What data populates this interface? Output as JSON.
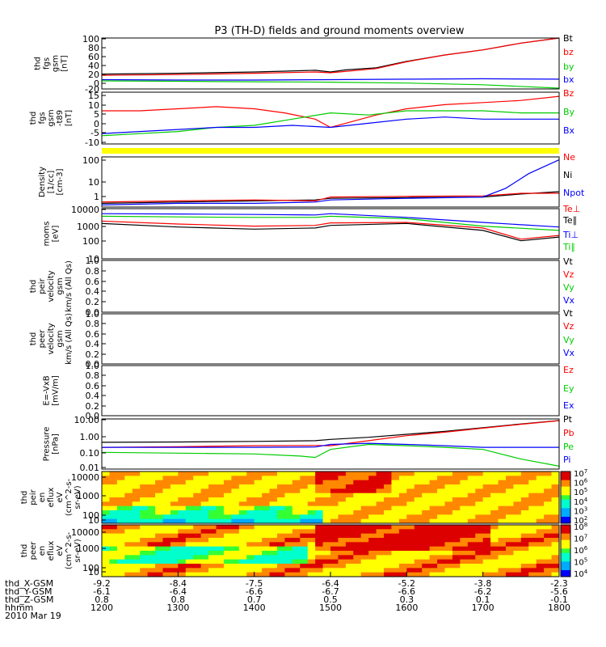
{
  "title": "P3 (TH-D) fields and ground moments overview",
  "colors": {
    "black": "#000000",
    "red": "#ff0000",
    "green": "#00cc00",
    "blue": "#0000ff",
    "yellow": "#ffff00"
  },
  "chart_data": [
    {
      "type": "line",
      "ylabel": [
        "thd",
        "fgs",
        "gsm",
        "[nT]"
      ],
      "yticks": [
        "100",
        "80",
        "60",
        "40",
        "20",
        "0",
        "-20"
      ],
      "ylim": [
        -20,
        100
      ],
      "legend": [
        {
          "text": "Bt",
          "color": "#000000"
        },
        {
          "text": "bz",
          "color": "#ff0000"
        },
        {
          "text": "by",
          "color": "#00cc00"
        },
        {
          "text": "bx",
          "color": "#0000ff"
        }
      ],
      "series": [
        {
          "color": "#000000",
          "x": [
            1200,
            1300,
            1400,
            1440,
            1480,
            1500,
            1520,
            1560,
            1600,
            1650,
            1700,
            1750,
            1800
          ],
          "y": [
            15,
            17,
            20,
            22,
            24,
            20,
            25,
            30,
            45,
            60,
            72,
            88,
            100
          ]
        },
        {
          "color": "#ff0000",
          "x": [
            1200,
            1300,
            1400,
            1480,
            1500,
            1560,
            1600,
            1650,
            1700,
            1750,
            1800
          ],
          "y": [
            12,
            14,
            17,
            20,
            18,
            28,
            44,
            60,
            72,
            88,
            100
          ]
        },
        {
          "color": "#0000ff",
          "x": [
            1200,
            1300,
            1400,
            1500,
            1600,
            1700,
            1800
          ],
          "y": [
            2,
            1,
            1,
            2,
            3,
            4,
            3
          ]
        },
        {
          "color": "#00cc00",
          "x": [
            1200,
            1300,
            1400,
            1500,
            1600,
            1700,
            1800
          ],
          "y": [
            -1,
            -2,
            -3,
            -4,
            -6,
            -10,
            -18
          ]
        }
      ]
    },
    {
      "type": "line",
      "ylabel": [
        "thd",
        "fgs",
        "gsm",
        "-t89",
        "[nT]"
      ],
      "yticks": [
        "15",
        "10",
        "5",
        "0",
        "-5",
        "-10"
      ],
      "ylim": [
        -10,
        15
      ],
      "legend": [
        {
          "text": "Bz",
          "color": "#ff0000"
        },
        {
          "text": "By",
          "color": "#00cc00"
        },
        {
          "text": "Bx",
          "color": "#0000ff"
        }
      ],
      "series": [
        {
          "color": "#ff0000",
          "x": [
            1200,
            1250,
            1300,
            1350,
            1400,
            1440,
            1480,
            1500,
            1520,
            1560,
            1600,
            1650,
            1700,
            1750,
            1800
          ],
          "y": [
            6,
            6,
            7,
            8,
            7,
            5,
            2,
            -2,
            0,
            4,
            7,
            9,
            10,
            11,
            13
          ]
        },
        {
          "color": "#00cc00",
          "x": [
            1200,
            1250,
            1300,
            1350,
            1400,
            1450,
            1500,
            1550,
            1600,
            1650,
            1700,
            1750,
            1800
          ],
          "y": [
            -6,
            -5,
            -4,
            -2,
            -1,
            2,
            5,
            4,
            6,
            6,
            6,
            5,
            5
          ]
        },
        {
          "color": "#0000ff",
          "x": [
            1200,
            1250,
            1300,
            1350,
            1400,
            1450,
            1500,
            1550,
            1600,
            1650,
            1700,
            1750,
            1800
          ],
          "y": [
            -5,
            -4,
            -3,
            -2,
            -2,
            -1,
            -2,
            0,
            2,
            3,
            2,
            2,
            2
          ]
        }
      ]
    },
    {
      "type": "heatmap",
      "ylabel": [
        "Density",
        "[1/cc]",
        "[cm-3]"
      ],
      "yticks": [
        "100",
        "10",
        "1"
      ],
      "ylim": [
        0.3,
        300
      ],
      "scale": "log",
      "legend": [
        {
          "text": "Ne",
          "color": "#ff0000"
        },
        {
          "text": "Ni",
          "color": "#000000"
        },
        {
          "text": "Npot",
          "color": "#0000ff"
        }
      ],
      "series": [
        {
          "color": "#000000",
          "x": [
            1200,
            1300,
            1400,
            1480,
            1500,
            1600,
            1700,
            1750,
            1800
          ],
          "y": [
            0.5,
            0.6,
            0.7,
            0.8,
            1.0,
            1.1,
            1.2,
            1.8,
            2.5
          ]
        },
        {
          "color": "#ff0000",
          "x": [
            1200,
            1300,
            1400,
            1480,
            1500,
            1600,
            1700,
            1750,
            1800
          ],
          "y": [
            0.6,
            0.7,
            0.8,
            0.7,
            1.2,
            1.3,
            1.4,
            2.0,
            2.0
          ]
        },
        {
          "color": "#0000ff",
          "x": [
            1200,
            1300,
            1400,
            1480,
            1500,
            1600,
            1700,
            1730,
            1760,
            1800
          ],
          "y": [
            0.4,
            0.5,
            0.5,
            0.6,
            0.8,
            1.0,
            1.2,
            4,
            30,
            200
          ]
        }
      ]
    },
    {
      "type": "line",
      "ylabel": [
        "moms",
        "[eV]"
      ],
      "yticks": [
        "10000",
        "1000",
        "100",
        "10"
      ],
      "ylim": [
        10,
        10000
      ],
      "scale": "log",
      "legend": [
        {
          "text": "Te⊥",
          "color": "#ff0000"
        },
        {
          "text": "Te∥",
          "color": "#000000"
        },
        {
          "text": "Ti⊥",
          "color": "#0000ff"
        },
        {
          "text": "Ti∥",
          "color": "#00cc00"
        }
      ],
      "series": [
        {
          "color": "#0000ff",
          "x": [
            1200,
            1300,
            1400,
            1480,
            1500,
            1600,
            1700,
            1800
          ],
          "y": [
            5000,
            4800,
            4500,
            4200,
            5000,
            3000,
            1500,
            800
          ]
        },
        {
          "color": "#00cc00",
          "x": [
            1200,
            1300,
            1400,
            1480,
            1500,
            1600,
            1700,
            1800
          ],
          "y": [
            3500,
            3200,
            3000,
            3000,
            3500,
            2500,
            900,
            500
          ]
        },
        {
          "color": "#ff0000",
          "x": [
            1200,
            1300,
            1400,
            1480,
            1500,
            1600,
            1700,
            1750,
            1800
          ],
          "y": [
            1800,
            1200,
            900,
            1000,
            1400,
            1500,
            700,
            150,
            250
          ]
        },
        {
          "color": "#000000",
          "x": [
            1200,
            1300,
            1400,
            1480,
            1500,
            1600,
            1700,
            1750,
            1800
          ],
          "y": [
            1300,
            800,
            600,
            700,
            1000,
            1300,
            500,
            120,
            200
          ]
        }
      ]
    },
    {
      "type": "line",
      "ylabel": [
        "thd",
        "peir",
        "velocity",
        "gsm",
        "km/s (All Qs)"
      ],
      "yticks": [
        "1.0",
        "0.8",
        "0.6",
        "0.4",
        "0.2",
        "0.0"
      ],
      "ylim": [
        0,
        1
      ],
      "legend": [
        {
          "text": "Vt",
          "color": "#000000"
        },
        {
          "text": "Vz",
          "color": "#ff0000"
        },
        {
          "text": "Vy",
          "color": "#00cc00"
        },
        {
          "text": "Vx",
          "color": "#0000ff"
        }
      ],
      "series": []
    },
    {
      "type": "line",
      "ylabel": [
        "thd",
        "peer",
        "velocity",
        "gsm",
        "km/s (All Qs)"
      ],
      "yticks": [
        "1.0",
        "0.8",
        "0.6",
        "0.4",
        "0.2",
        "0.0"
      ],
      "ylim": [
        0,
        1
      ],
      "legend": [
        {
          "text": "Vt",
          "color": "#000000"
        },
        {
          "text": "Vz",
          "color": "#ff0000"
        },
        {
          "text": "Vy",
          "color": "#00cc00"
        },
        {
          "text": "Vx",
          "color": "#0000ff"
        }
      ],
      "series": []
    },
    {
      "type": "line",
      "ylabel": [
        "E=-VxB",
        "[mV/m]"
      ],
      "yticks": [
        "1.0",
        "0.8",
        "0.6",
        "0.4",
        "0.2",
        "0.0"
      ],
      "ylim": [
        0,
        1
      ],
      "legend": [
        {
          "text": "Ez",
          "color": "#ff0000"
        },
        {
          "text": "Ey",
          "color": "#00cc00"
        },
        {
          "text": "Ex",
          "color": "#0000ff"
        }
      ],
      "series": []
    },
    {
      "type": "line",
      "ylabel": [
        "Pressure",
        "[nPa]"
      ],
      "yticks": [
        "10.00",
        "1.00",
        "0.10",
        "0.01"
      ],
      "ylim": [
        0.01,
        10
      ],
      "scale": "log",
      "legend": [
        {
          "text": "Pt",
          "color": "#000000"
        },
        {
          "text": "Pb",
          "color": "#ff0000"
        },
        {
          "text": "Pe",
          "color": "#00cc00"
        },
        {
          "text": "Pi",
          "color": "#0000ff"
        }
      ],
      "series": [
        {
          "color": "#000000",
          "x": [
            1200,
            1300,
            1400,
            1480,
            1500,
            1550,
            1600,
            1650,
            1700,
            1750,
            1800
          ],
          "y": [
            0.4,
            0.42,
            0.45,
            0.5,
            0.6,
            0.8,
            1.2,
            1.8,
            3.0,
            5.0,
            8.0
          ]
        },
        {
          "color": "#ff0000",
          "x": [
            1200,
            1300,
            1400,
            1480,
            1500,
            1550,
            1600,
            1650,
            1700,
            1750,
            1800
          ],
          "y": [
            0.2,
            0.22,
            0.25,
            0.26,
            0.25,
            0.5,
            1.0,
            1.6,
            2.8,
            4.8,
            7.8
          ]
        },
        {
          "color": "#0000ff",
          "x": [
            1200,
            1300,
            1400,
            1480,
            1500,
            1550,
            1600,
            1650,
            1700,
            1800
          ],
          "y": [
            0.2,
            0.2,
            0.2,
            0.21,
            0.3,
            0.35,
            0.3,
            0.25,
            0.2,
            0.2
          ]
        },
        {
          "color": "#00cc00",
          "x": [
            1200,
            1300,
            1400,
            1460,
            1480,
            1500,
            1550,
            1600,
            1650,
            1700,
            1750,
            1800
          ],
          "y": [
            0.1,
            0.09,
            0.08,
            0.06,
            0.05,
            0.15,
            0.3,
            0.25,
            0.2,
            0.15,
            0.04,
            0.015
          ]
        }
      ]
    },
    {
      "type": "heatmap",
      "ylabel": [
        "thd",
        "peir",
        "en",
        "eflux",
        "eV",
        "(cm^2-s-",
        "sr-eV)"
      ],
      "yticks": [
        "10000",
        "1000",
        "100",
        "10"
      ],
      "ylim": [
        6,
        20000
      ],
      "scale": "log",
      "colorbar": {
        "labels": [
          "10^7",
          "10^6",
          "10^5",
          "10^4",
          "10^3",
          "10^2"
        ]
      }
    },
    {
      "type": "heatmap",
      "ylabel": [
        "thd",
        "peer",
        "en",
        "eflux",
        "eV",
        "(cm^2-s-",
        "sr-eV)"
      ],
      "yticks": [
        "10000",
        "1000",
        "100",
        "10"
      ],
      "ylim": [
        6,
        20000
      ],
      "scale": "log",
      "colorbar": {
        "labels": [
          "10^8",
          "10^7",
          "10^6",
          "10^5",
          "10^4"
        ]
      }
    }
  ],
  "x_axis": {
    "ticks": [
      {
        "x": 1200,
        "X": "-9.2",
        "Y": "-6.1",
        "Z": "0.8",
        "hhmm": "1200"
      },
      {
        "x": 1300,
        "X": "-8.4",
        "Y": "-6.4",
        "Z": "0.8",
        "hhmm": "1300"
      },
      {
        "x": 1400,
        "X": "-7.5",
        "Y": "-6.6",
        "Z": "0.7",
        "hhmm": "1400"
      },
      {
        "x": 1500,
        "X": "-6.4",
        "Y": "-6.7",
        "Z": "0.5",
        "hhmm": "1500"
      },
      {
        "x": 1600,
        "X": "-5.2",
        "Y": "-6.6",
        "Z": "0.3",
        "hhmm": "1600"
      },
      {
        "x": 1700,
        "X": "-3.8",
        "Y": "-6.2",
        "Z": "0.1",
        "hhmm": "1700"
      },
      {
        "x": 1800,
        "X": "-2.3",
        "Y": "-5.6",
        "Z": "-0.1",
        "hhmm": "1800"
      }
    ],
    "row_labels": [
      "thd_X-GSM",
      "thd_Y-GSM",
      "thd_Z-GSM",
      "hhmm",
      "2010 Mar 19"
    ]
  }
}
